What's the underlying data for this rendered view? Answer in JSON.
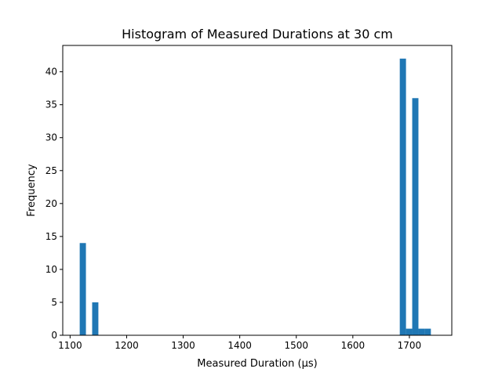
{
  "chart_data": {
    "type": "bar",
    "title": "Histogram of Measured Durations at 30 cm",
    "xlabel": "Measured Duration (µs)",
    "ylabel": "Frequency",
    "xlim": [
      1087,
      1775
    ],
    "ylim": [
      0,
      44
    ],
    "xticks": [
      1100,
      1200,
      1300,
      1400,
      1500,
      1600,
      1700
    ],
    "yticks": [
      0,
      5,
      10,
      15,
      20,
      25,
      30,
      35,
      40
    ],
    "bar_color": "#1f77b4",
    "bins": [
      {
        "start": 1117,
        "end": 1128,
        "count": 14
      },
      {
        "start": 1139,
        "end": 1150,
        "count": 5
      },
      {
        "start": 1683,
        "end": 1694,
        "count": 42
      },
      {
        "start": 1694,
        "end": 1705,
        "count": 1
      },
      {
        "start": 1705,
        "end": 1716,
        "count": 36
      },
      {
        "start": 1716,
        "end": 1727,
        "count": 1
      },
      {
        "start": 1727,
        "end": 1738,
        "count": 1
      }
    ]
  }
}
